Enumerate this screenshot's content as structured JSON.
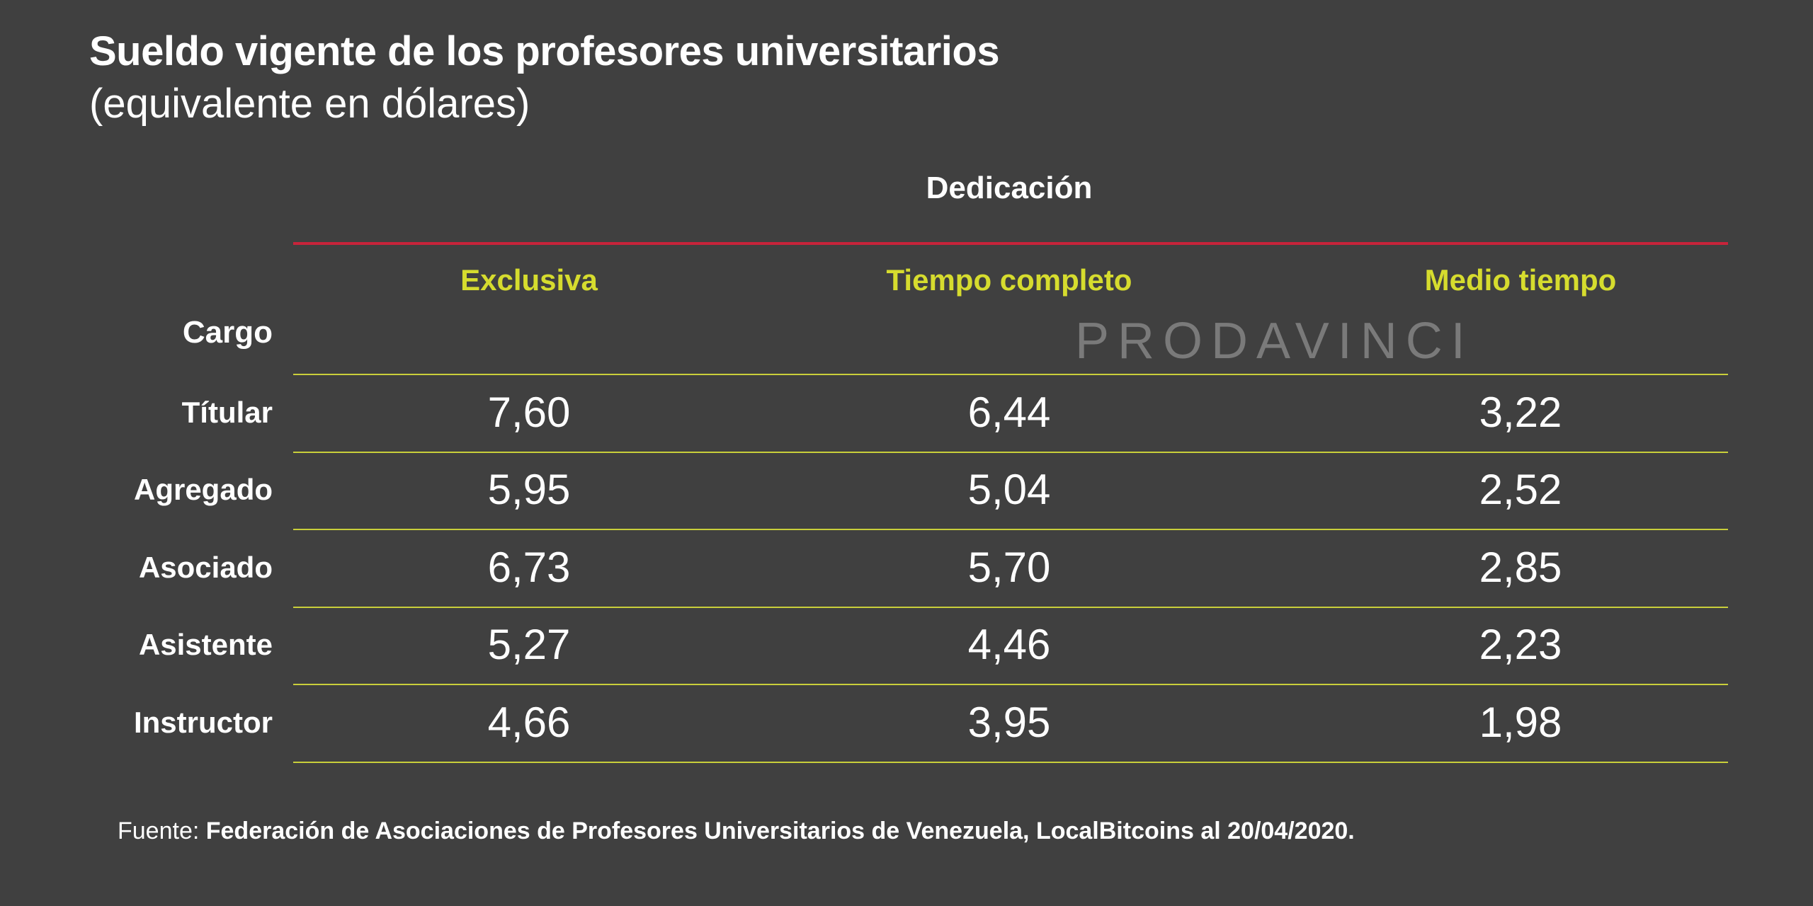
{
  "chart_data": {
    "type": "table",
    "title": "Sueldo vigente de los profesores universitarios",
    "subtitle": "(equivalente en dólares)",
    "group_header": "Dedicación",
    "row_header": "Cargo",
    "columns": [
      "Exclusiva",
      "Tiempo completo",
      "Medio tiempo"
    ],
    "rows": [
      {
        "label": "Títular",
        "values": [
          "7,60",
          "6,44",
          "3,22"
        ]
      },
      {
        "label": "Agregado",
        "values": [
          "5,95",
          "5,04",
          "2,52"
        ]
      },
      {
        "label": "Asociado",
        "values": [
          "6,73",
          "5,70",
          "2,85"
        ]
      },
      {
        "label": "Asistente",
        "values": [
          "5,27",
          "4,46",
          "2,23"
        ]
      },
      {
        "label": "Instructor",
        "values": [
          "4,66",
          "3,95",
          "1,98"
        ]
      }
    ],
    "source_lead": "Fuente: ",
    "source_text": "Federación de Asociaciones de Profesores Universitarios de Venezuela, LocalBitcoins al 20/04/2020.",
    "watermark": "PRODAVINCI"
  },
  "colors": {
    "background": "#404040",
    "header_accent": "#d6dc2e",
    "top_rule": "#c8243a",
    "row_rule": "#c9cf3a"
  }
}
